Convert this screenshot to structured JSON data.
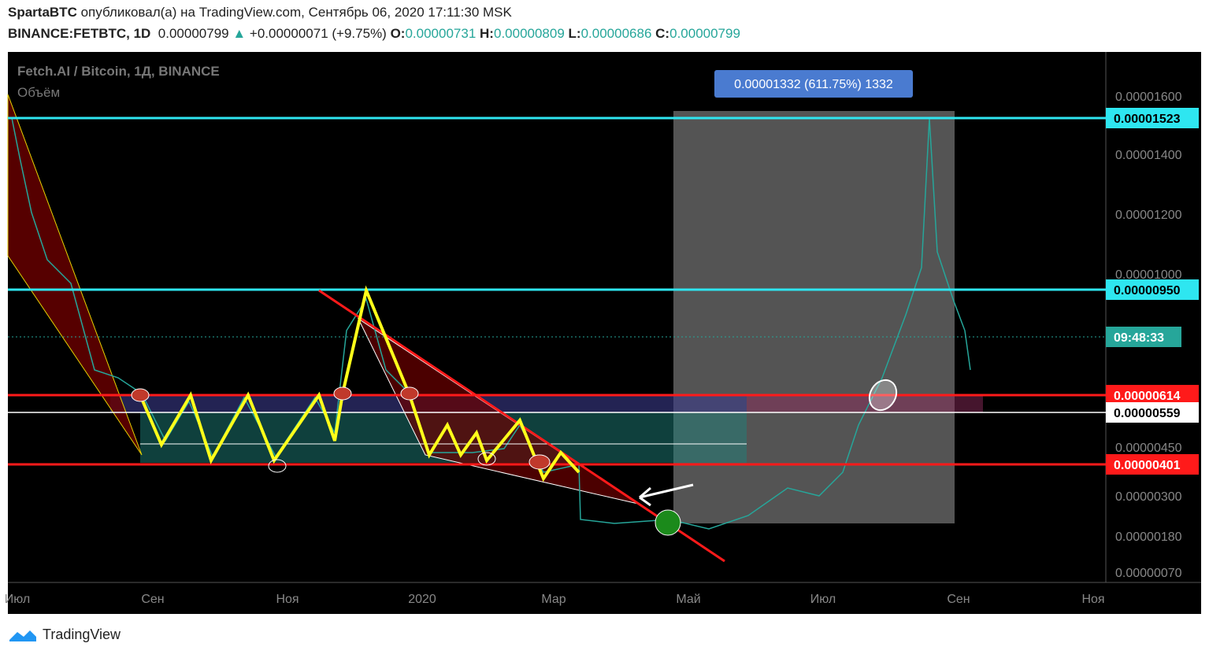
{
  "header": {
    "author": "SpartaBTC",
    "published": "опубликовал(а) на TradingView.com, Сентябрь 06, 2020 17:11:30 MSK"
  },
  "ticker": {
    "symbol": "BINANCE:FETBTC, 1D",
    "price": "0.00000799",
    "change": "+0.00000071 (+9.75%)",
    "open_label": "O:",
    "open": "0.00000731",
    "high_label": "H:",
    "high": "0.00000809",
    "low_label": "L:",
    "low": "0.00000686",
    "close_label": "C:",
    "close": "0.00000799"
  },
  "chart": {
    "legend_title": "Fetch.AI / Bitcoin, 1Д, BINANCE",
    "volume_label": "Объём",
    "measure_label": "0.00001332 (611.75%) 1332",
    "price_axis": [
      "0.00001600",
      "0.00001400",
      "0.00001200",
      "0.00001000",
      "0.00000450",
      "0.00000300",
      "0.00000180",
      "0.00000070"
    ],
    "price_tags": [
      "0.00001523",
      "0.00000950",
      "09:48:33",
      "0.00000614",
      "0.00000559",
      "0.00000401"
    ],
    "time_axis": [
      "Июл",
      "Сен",
      "Ноя",
      "2020",
      "Мар",
      "Май",
      "Июл",
      "Сен",
      "Ноя"
    ]
  },
  "footer": {
    "brand": "TradingView"
  }
}
